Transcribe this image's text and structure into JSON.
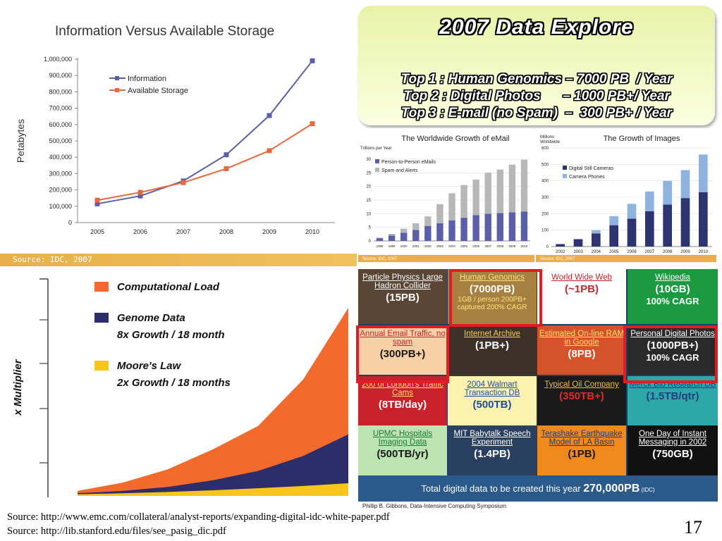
{
  "slide_number": "17",
  "sources": [
    "Source: http://www.emc.com/collateral/analyst-reports/expanding-digital-idc-white-paper.pdf",
    "Source: http://lib.stanford.edu/files/see_pasig_dic.pdf"
  ],
  "attribution": "Phillip B. Gibbons, Data-Intensive Computing Symposium",
  "idc_strip": "Source: IDC, 2007",
  "explore": {
    "title": "2007 Data Explore",
    "lines": [
      "Top 1 : Human Genomics – 7000 PB  / Year",
      "Top 2 : Digital Photos      – 1000 PB+/ Year",
      "Top 3 : E-mail (no Spam)  –  300 PB+ / Year"
    ]
  },
  "colors": {
    "blue": "#5b5ea8",
    "orange": "#e8683b",
    "navy": "#2e3471",
    "growth_orange": "#f26a2c",
    "growth_navy": "#2c2e6b",
    "growth_yellow": "#f7c51e",
    "grey": "#b5b7b9",
    "lightblue": "#8eb3de",
    "highlight": "#e31b23"
  },
  "chart_data": [
    {
      "type": "line",
      "title": "Information Versus Available Storage",
      "ylabel": "Petabytes",
      "xlabel": "",
      "x": [
        "2005",
        "2006",
        "2007",
        "2008",
        "2009",
        "2010"
      ],
      "ylim": [
        0,
        1000000
      ],
      "yticks": [
        "0",
        "100,000",
        "200,000",
        "300,000",
        "400,000",
        "500,000",
        "600,000",
        "700,000",
        "800,000",
        "900,000",
        "1,000,000"
      ],
      "legend": "top-left",
      "series": [
        {
          "name": "Information",
          "values": [
            115000,
            163000,
            255000,
            415000,
            655000,
            990000
          ]
        },
        {
          "name": "Available Storage",
          "values": [
            137000,
            185000,
            245000,
            330000,
            440000,
            605000
          ]
        }
      ]
    },
    {
      "type": "bar",
      "title": "The Worldwide Growth of eMail",
      "ylabel": "Trillions per Year",
      "ylim": [
        0,
        30
      ],
      "yticks": [
        "0",
        "5",
        "10",
        "15",
        "20",
        "25",
        "30"
      ],
      "categories": [
        "1998",
        "1999",
        "2000",
        "2001",
        "2002",
        "2003",
        "2004",
        "2005",
        "2006",
        "2007",
        "2008",
        "2009",
        "2010"
      ],
      "stacked": true,
      "legend": "top-left",
      "series": [
        {
          "name": "Person-to-Person eMails",
          "values": [
            1,
            2,
            3,
            4,
            5.5,
            6.5,
            7.5,
            8.5,
            9.5,
            10,
            10.2,
            10.5,
            10.8
          ]
        },
        {
          "name": "Spam and Alerts",
          "values": [
            0.2,
            0.6,
            1.5,
            2.5,
            3.5,
            7,
            10,
            12,
            13,
            15,
            16,
            17.5,
            19
          ]
        }
      ],
      "source": "Source: IDC, 2007"
    },
    {
      "type": "bar",
      "title": "The Growth of Images",
      "ylabel": "Millions Worldwide",
      "ylim": [
        0,
        600
      ],
      "yticks": [
        "0",
        "100",
        "200",
        "300",
        "400",
        "500",
        "600"
      ],
      "categories": [
        "2002",
        "2003",
        "2004",
        "2005",
        "2006",
        "2007",
        "2008",
        "2009",
        "2010"
      ],
      "stacked": true,
      "legend": "top-left",
      "series": [
        {
          "name": "Digital Still Cameras",
          "values": [
            15,
            45,
            80,
            130,
            170,
            215,
            255,
            295,
            330
          ]
        },
        {
          "name": "Camera Phones",
          "values": [
            0,
            0,
            20,
            55,
            90,
            120,
            145,
            170,
            230
          ]
        }
      ],
      "source": "Source: IDC, 2007"
    },
    {
      "type": "area",
      "ylabel": "x Multiplier",
      "stacked": true,
      "x": [
        0,
        1,
        2,
        3,
        4,
        5,
        6
      ],
      "legend": "top-left",
      "series": [
        {
          "name": "Moore's Law",
          "subtitle": "2x Growth / 18 months",
          "values": [
            1,
            1.6,
            2.4,
            3.4,
            4.6,
            6,
            7.6
          ]
        },
        {
          "name": "Genome Data",
          "subtitle": "8x Growth / 18 month",
          "values": [
            1.6,
            3,
            5.4,
            9.4,
            15,
            24,
            37
          ]
        },
        {
          "name": "Computational Load",
          "subtitle": "",
          "values": [
            3,
            8,
            16,
            28,
            42,
            70,
            113
          ]
        }
      ]
    }
  ],
  "tiles": [
    {
      "label": "Particle Physics Large Hadron Collider",
      "value": "(15PB)",
      "note": "",
      "bg": "#5b4535",
      "fg": "#ffffff",
      "valfg": "#ffffff"
    },
    {
      "label": "Human Genomics",
      "value": "(7000PB)",
      "note": "1GB / person 200PB+ captured 200% CAGR",
      "bg": "#a58040",
      "fg": "#ffe27a",
      "valfg": "#ffffff"
    },
    {
      "label": "World Wide Web",
      "value": "(~1PB)",
      "note": "",
      "bg": "#ffffff",
      "fg": "#c0282e",
      "valfg": "#c0282e"
    },
    {
      "label": "Wikipedia",
      "value": "(10GB)",
      "note": "100% CAGR",
      "bg": "#1c9a42",
      "fg": "#ffffff",
      "valfg": "#ffffff"
    },
    {
      "label": "Annual Email Traffic, no spam",
      "value": "(300PB+)",
      "note": "",
      "bg": "#f8d0a8",
      "fg": "#c0282e",
      "valfg": "#1a1a1a"
    },
    {
      "label": "Internet Archive",
      "value": "(1PB+)",
      "note": "",
      "bg": "#3c3028",
      "fg": "#f0d060",
      "valfg": "#ffffff"
    },
    {
      "label": "Estimated On-line RAM in Google",
      "value": "(8PB)",
      "note": "",
      "bg": "#d4532a",
      "fg": "#ffe070",
      "valfg": "#ffffff"
    },
    {
      "label": "Personal Digital Photos",
      "value": "(1000PB+)",
      "note": "100% CAGR",
      "bg": "#2a2a2a",
      "fg": "#ffffff",
      "valfg": "#ffffff"
    },
    {
      "label": "200 of London's Traffic Cams",
      "value": "(8TB/day)",
      "note": "",
      "bg": "#c8212b",
      "fg": "#ffe070",
      "valfg": "#ffffff"
    },
    {
      "label": "2004 Walmart Transaction DB",
      "value": "(500TB)",
      "note": "",
      "bg": "#fbf2b0",
      "fg": "#1f4fa0",
      "valfg": "#1f4fa0"
    },
    {
      "label": "Typical Oil Company",
      "value": "(350TB+)",
      "note": "",
      "bg": "#1a1a1a",
      "fg": "#f0c030",
      "valfg": "#e32b2b"
    },
    {
      "label": "Merck Bio Research DB",
      "value": "(1.5TB/qtr)",
      "note": "",
      "bg": "#2da8a8",
      "fg": "#1f3f80",
      "valfg": "#1f3f80"
    },
    {
      "label": "UPMC Hospitals Imaging Data",
      "value": "(500TB/yr)",
      "note": "",
      "bg": "#bde3b3",
      "fg": "#1a7a3a",
      "valfg": "#1a1a1a"
    },
    {
      "label": "MIT Babytalk Speech Experiment",
      "value": "(1.4PB)",
      "note": "",
      "bg": "#2a4060",
      "fg": "#ffffff",
      "valfg": "#ffffff"
    },
    {
      "label": "Terashake Earthquake Model of LA Basin",
      "value": "(1PB)",
      "note": "",
      "bg": "#f08a1c",
      "fg": "#1a3a80",
      "valfg": "#1a1a1a"
    },
    {
      "label": "One Day of Instant Messaging in 2002",
      "value": "(750GB)",
      "note": "",
      "bg": "#111111",
      "fg": "#ffffff",
      "valfg": "#ffffff"
    }
  ],
  "total": {
    "prefix": "Total digital data to be created this year ",
    "value": "270,000PB",
    "suffix": " (IDC)"
  }
}
